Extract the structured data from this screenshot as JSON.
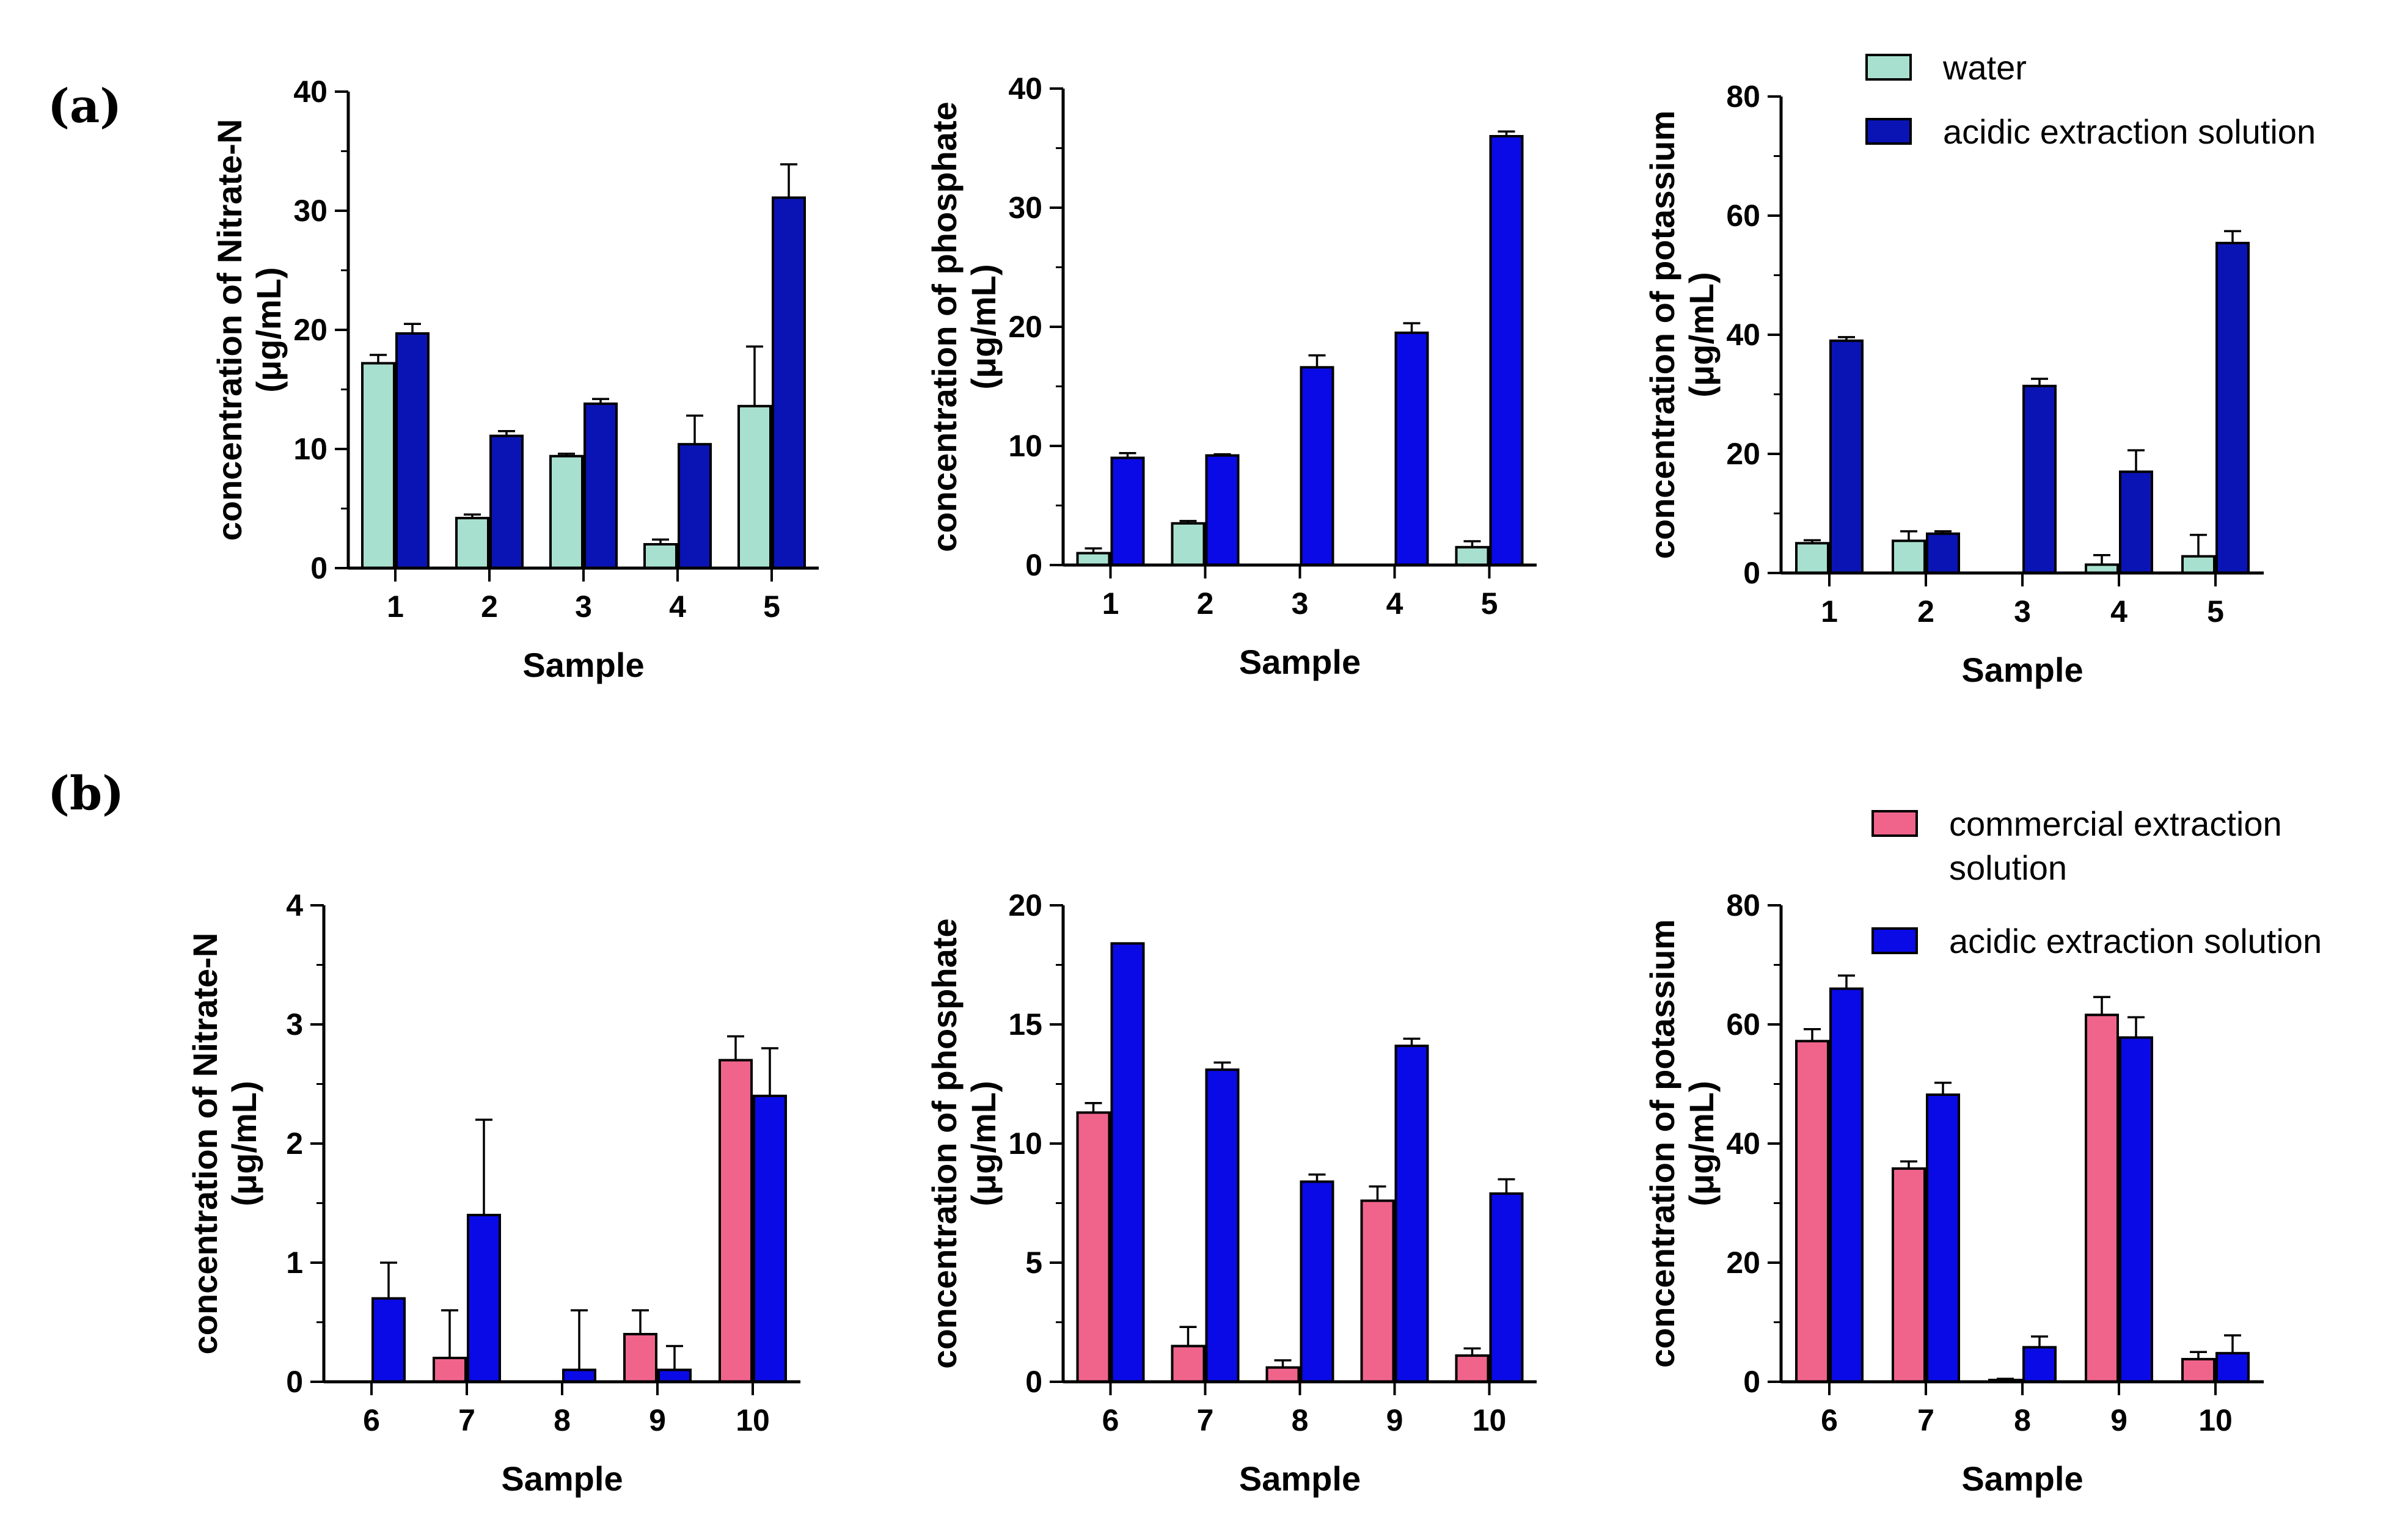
{
  "panel_labels": [
    "(a)",
    "(b)"
  ],
  "legends": [
    {
      "panel": "a",
      "entries": [
        {
          "label_lines": [
            "water"
          ],
          "color": "#a8e0cf"
        },
        {
          "label_lines": [
            "acidic extraction solution"
          ],
          "color": "#0a14b4"
        }
      ]
    },
    {
      "panel": "b",
      "entries": [
        {
          "label_lines": [
            "commercial extraction",
            "solution"
          ],
          "color": "#f0648c"
        },
        {
          "label_lines": [
            "acidic extraction solution"
          ],
          "color": "#0a0ae6"
        }
      ]
    }
  ],
  "chart_data": [
    {
      "type": "bar",
      "panel": "a",
      "ylabel_lines": [
        "concentration of Nitrate-N",
        "(μg/mL)"
      ],
      "xlabel": "Sample",
      "categories": [
        "1",
        "2",
        "3",
        "4",
        "5"
      ],
      "ylim": [
        0,
        40
      ],
      "yticks": [
        0,
        10,
        20,
        30,
        40
      ],
      "series": [
        {
          "name": "water",
          "color": "#a8e0cf",
          "values": [
            17.2,
            4.2,
            9.4,
            2.0,
            13.6
          ],
          "errors": [
            0.7,
            0.3,
            0.2,
            0.4,
            5.0
          ]
        },
        {
          "name": "acidic extraction solution",
          "color": "#0a14b4",
          "values": [
            19.7,
            11.1,
            13.8,
            10.4,
            31.1
          ],
          "errors": [
            0.8,
            0.4,
            0.4,
            2.4,
            2.8
          ]
        }
      ]
    },
    {
      "type": "bar",
      "panel": "a",
      "ylabel_lines": [
        "concentration of phosphate",
        "(μg/mL)"
      ],
      "xlabel": "Sample",
      "categories": [
        "1",
        "2",
        "3",
        "4",
        "5"
      ],
      "ylim": [
        0,
        40
      ],
      "yticks": [
        0,
        10,
        20,
        30,
        40
      ],
      "series": [
        {
          "name": "water",
          "color": "#a8e0cf",
          "values": [
            1.0,
            3.5,
            0,
            0,
            1.5
          ],
          "errors": [
            0.4,
            0.2,
            0,
            0,
            0.5
          ]
        },
        {
          "name": "acidic extraction solution",
          "color": "#0a0ae6",
          "values": [
            9.0,
            9.2,
            16.6,
            19.5,
            36.0
          ],
          "errors": [
            0.4,
            0.1,
            1.0,
            0.8,
            0.4
          ]
        }
      ]
    },
    {
      "type": "bar",
      "panel": "a",
      "ylabel_lines": [
        "concentration of potassium",
        "(μg/mL)"
      ],
      "xlabel": "Sample",
      "categories": [
        "1",
        "2",
        "3",
        "4",
        "5"
      ],
      "ylim": [
        0,
        80
      ],
      "yticks": [
        0,
        20,
        40,
        60,
        80
      ],
      "series": [
        {
          "name": "water",
          "color": "#a8e0cf",
          "values": [
            5.0,
            5.4,
            0,
            1.4,
            2.8
          ],
          "errors": [
            0.5,
            1.6,
            0,
            1.6,
            3.6
          ]
        },
        {
          "name": "acidic extraction solution",
          "color": "#0a14b4",
          "values": [
            39.0,
            6.6,
            31.4,
            17.0,
            55.4
          ],
          "errors": [
            0.6,
            0.4,
            1.2,
            3.6,
            2.0
          ]
        }
      ]
    },
    {
      "type": "bar",
      "panel": "b",
      "ylabel_lines": [
        "concentration of Nitrate-N",
        "(μg/mL)"
      ],
      "xlabel": "Sample",
      "categories": [
        "6",
        "7",
        "8",
        "9",
        "10"
      ],
      "ylim": [
        0,
        4
      ],
      "yticks": [
        0,
        1,
        2,
        3,
        4
      ],
      "series": [
        {
          "name": "commercial extraction solution",
          "color": "#f0648c",
          "values": [
            0,
            0.2,
            0,
            0.4,
            2.7
          ],
          "errors": [
            0,
            0.4,
            0,
            0.2,
            0.2
          ]
        },
        {
          "name": "acidic extraction solution",
          "color": "#0a0ae6",
          "values": [
            0.7,
            1.4,
            0.1,
            0.1,
            2.4
          ],
          "errors": [
            0.3,
            0.8,
            0.5,
            0.2,
            0.4
          ]
        }
      ]
    },
    {
      "type": "bar",
      "panel": "b",
      "ylabel_lines": [
        "concentration of phosphate",
        "(μg/mL)"
      ],
      "xlabel": "Sample",
      "categories": [
        "6",
        "7",
        "8",
        "9",
        "10"
      ],
      "ylim": [
        0,
        20
      ],
      "yticks": [
        0,
        5,
        10,
        15,
        20
      ],
      "series": [
        {
          "name": "commercial extraction solution",
          "color": "#f0648c",
          "values": [
            11.3,
            1.5,
            0.6,
            7.6,
            1.1
          ],
          "errors": [
            0.4,
            0.8,
            0.3,
            0.6,
            0.3
          ]
        },
        {
          "name": "acidic extraction solution",
          "color": "#0a0ae6",
          "values": [
            18.4,
            13.1,
            8.4,
            14.1,
            7.9
          ],
          "errors": [
            0.0,
            0.3,
            0.3,
            0.3,
            0.6
          ]
        }
      ]
    },
    {
      "type": "bar",
      "panel": "b",
      "ylabel_lines": [
        "concentration of potassium",
        "(μg/mL)"
      ],
      "xlabel": "Sample",
      "categories": [
        "6",
        "7",
        "8",
        "9",
        "10"
      ],
      "ylim": [
        0,
        80
      ],
      "yticks": [
        0,
        20,
        40,
        60,
        80
      ],
      "series": [
        {
          "name": "commercial extraction solution",
          "color": "#f0648c",
          "values": [
            57.2,
            35.8,
            0.3,
            61.6,
            3.8
          ],
          "errors": [
            2.0,
            1.2,
            0.2,
            3.0,
            1.2
          ]
        },
        {
          "name": "acidic extraction solution",
          "color": "#0a0ae6",
          "values": [
            66.0,
            48.2,
            5.8,
            57.8,
            4.8
          ],
          "errors": [
            2.2,
            2.0,
            1.8,
            3.4,
            3.0
          ]
        }
      ]
    }
  ]
}
